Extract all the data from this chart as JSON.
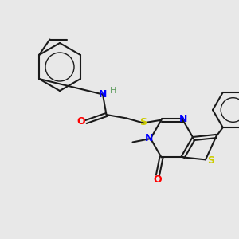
{
  "background_color": "#e8e8e8",
  "bond_color": "#1a1a1a",
  "N_color": "#0000ff",
  "S_color": "#cccc00",
  "O_color": "#ff0000",
  "H_color": "#5a9a5a",
  "font_size": 9,
  "figsize": [
    3.0,
    3.0
  ],
  "dpi": 100,
  "xlim": [
    0,
    10
  ],
  "ylim": [
    0,
    10
  ]
}
